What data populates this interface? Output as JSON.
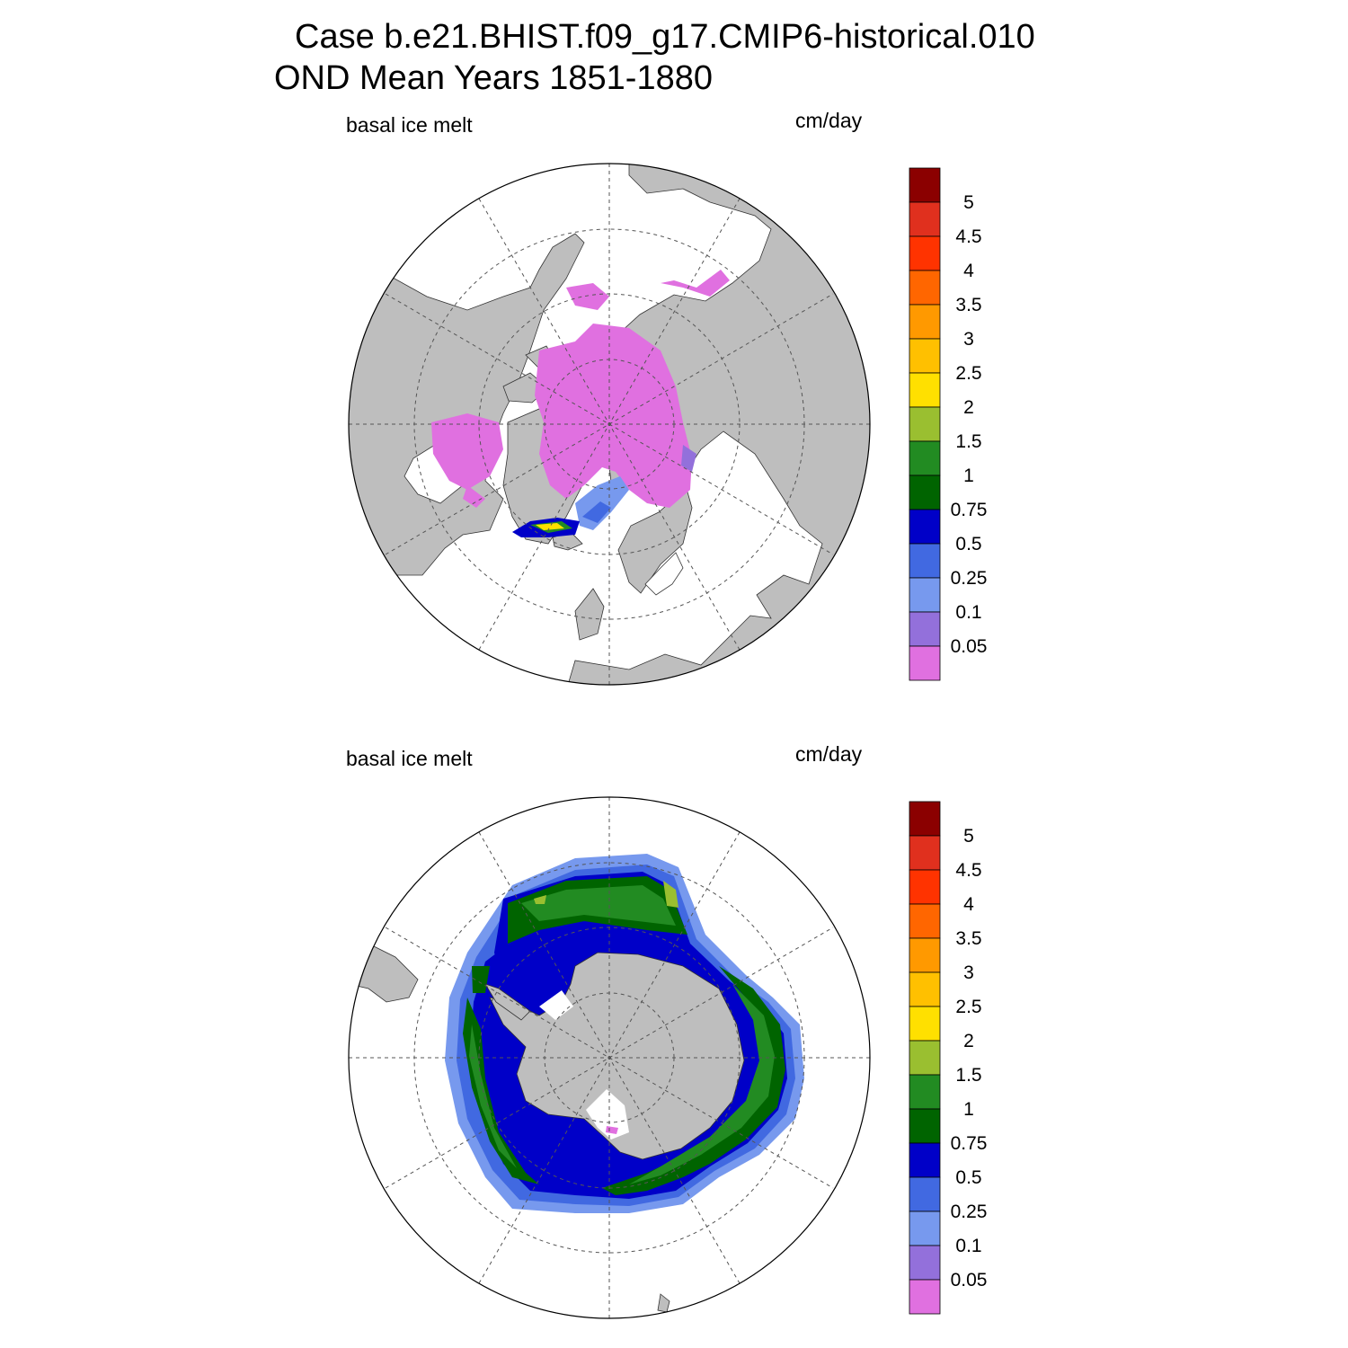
{
  "title": {
    "line1": "Case b.e21.BHIST.f09_g17.CMIP6-historical.010",
    "line2": "OND Mean   Years 1851-1880"
  },
  "colors": {
    "land": "#bebebe",
    "background": "#ffffff",
    "grid": "#555555"
  },
  "colorbar": {
    "labels": [
      "5",
      "4.5",
      "4",
      "3.5",
      "3",
      "2.5",
      "2",
      "1.5",
      "1",
      "0.75",
      "0.5",
      "0.25",
      "0.1",
      "0.05"
    ],
    "colors": [
      "#8b0000",
      "#e0301e",
      "#ff3300",
      "#ff6600",
      "#ff9900",
      "#ffc000",
      "#ffe000",
      "#9abf30",
      "#228b22",
      "#006400",
      "#0000c8",
      "#4169e1",
      "#7799ee",
      "#9370db",
      "#e070e0"
    ]
  },
  "panels": [
    {
      "id": "north",
      "variable_label": "basal ice melt",
      "units_label": "cm/day"
    },
    {
      "id": "south",
      "variable_label": "basal ice melt",
      "units_label": "cm/day"
    }
  ]
}
